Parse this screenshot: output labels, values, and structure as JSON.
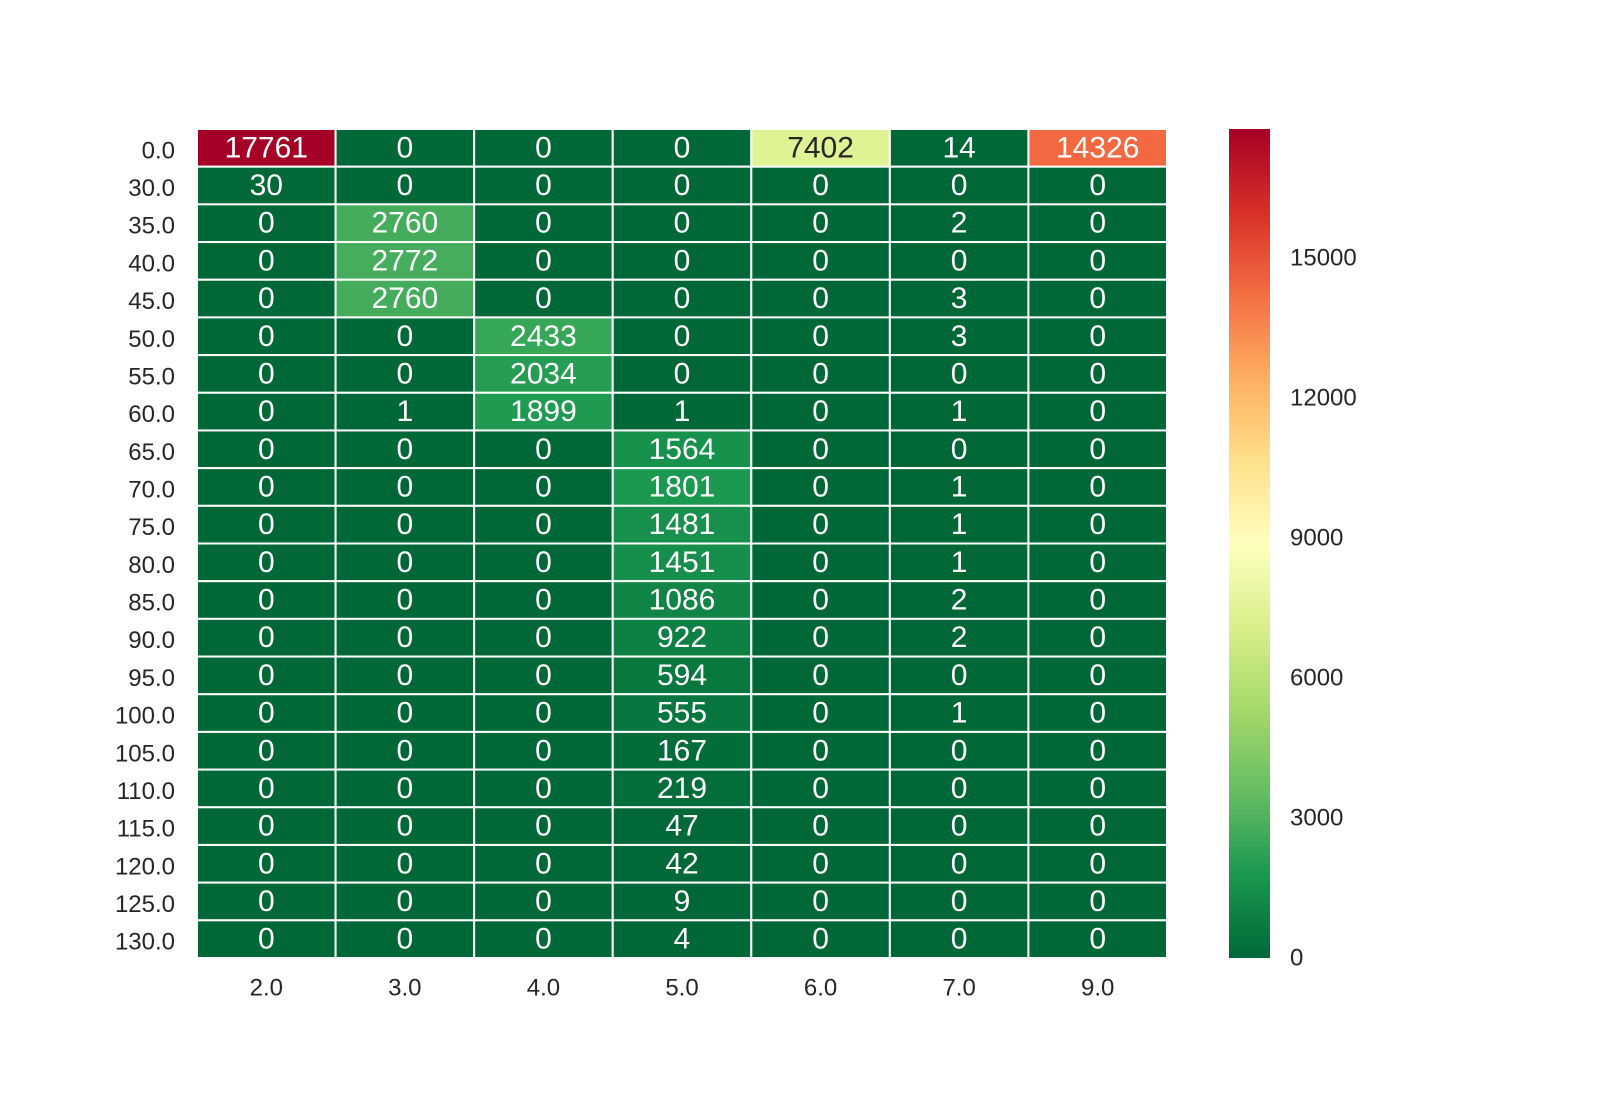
{
  "chart_data": {
    "type": "heatmap",
    "title": "",
    "xlabel": "",
    "ylabel": "",
    "x_categories": [
      "2.0",
      "3.0",
      "4.0",
      "5.0",
      "6.0",
      "7.0",
      "9.0"
    ],
    "y_categories": [
      "0.0",
      "30.0",
      "35.0",
      "40.0",
      "45.0",
      "50.0",
      "55.0",
      "60.0",
      "65.0",
      "70.0",
      "75.0",
      "80.0",
      "85.0",
      "90.0",
      "95.0",
      "100.0",
      "105.0",
      "110.0",
      "115.0",
      "120.0",
      "125.0",
      "130.0"
    ],
    "values": [
      [
        17761,
        0,
        0,
        0,
        7402,
        14,
        14326
      ],
      [
        30,
        0,
        0,
        0,
        0,
        0,
        0
      ],
      [
        0,
        2760,
        0,
        0,
        0,
        2,
        0
      ],
      [
        0,
        2772,
        0,
        0,
        0,
        0,
        0
      ],
      [
        0,
        2760,
        0,
        0,
        0,
        3,
        0
      ],
      [
        0,
        0,
        2433,
        0,
        0,
        3,
        0
      ],
      [
        0,
        0,
        2034,
        0,
        0,
        0,
        0
      ],
      [
        0,
        1,
        1899,
        1,
        0,
        1,
        0
      ],
      [
        0,
        0,
        0,
        1564,
        0,
        0,
        0
      ],
      [
        0,
        0,
        0,
        1801,
        0,
        1,
        0
      ],
      [
        0,
        0,
        0,
        1481,
        0,
        1,
        0
      ],
      [
        0,
        0,
        0,
        1451,
        0,
        1,
        0
      ],
      [
        0,
        0,
        0,
        1086,
        0,
        2,
        0
      ],
      [
        0,
        0,
        0,
        922,
        0,
        2,
        0
      ],
      [
        0,
        0,
        0,
        594,
        0,
        0,
        0
      ],
      [
        0,
        0,
        0,
        555,
        0,
        1,
        0
      ],
      [
        0,
        0,
        0,
        167,
        0,
        0,
        0
      ],
      [
        0,
        0,
        0,
        219,
        0,
        0,
        0
      ],
      [
        0,
        0,
        0,
        47,
        0,
        0,
        0
      ],
      [
        0,
        0,
        0,
        42,
        0,
        0,
        0
      ],
      [
        0,
        0,
        0,
        9,
        0,
        0,
        0
      ],
      [
        0,
        0,
        0,
        4,
        0,
        0,
        0
      ]
    ],
    "colormap": "RdYlGn_r",
    "colorbar": {
      "min": 0,
      "max": 17761,
      "ticks": [
        "0",
        "3000",
        "6000",
        "9000",
        "12000",
        "15000"
      ]
    },
    "annotations": true,
    "grid": true,
    "legend": "colorbar right"
  }
}
